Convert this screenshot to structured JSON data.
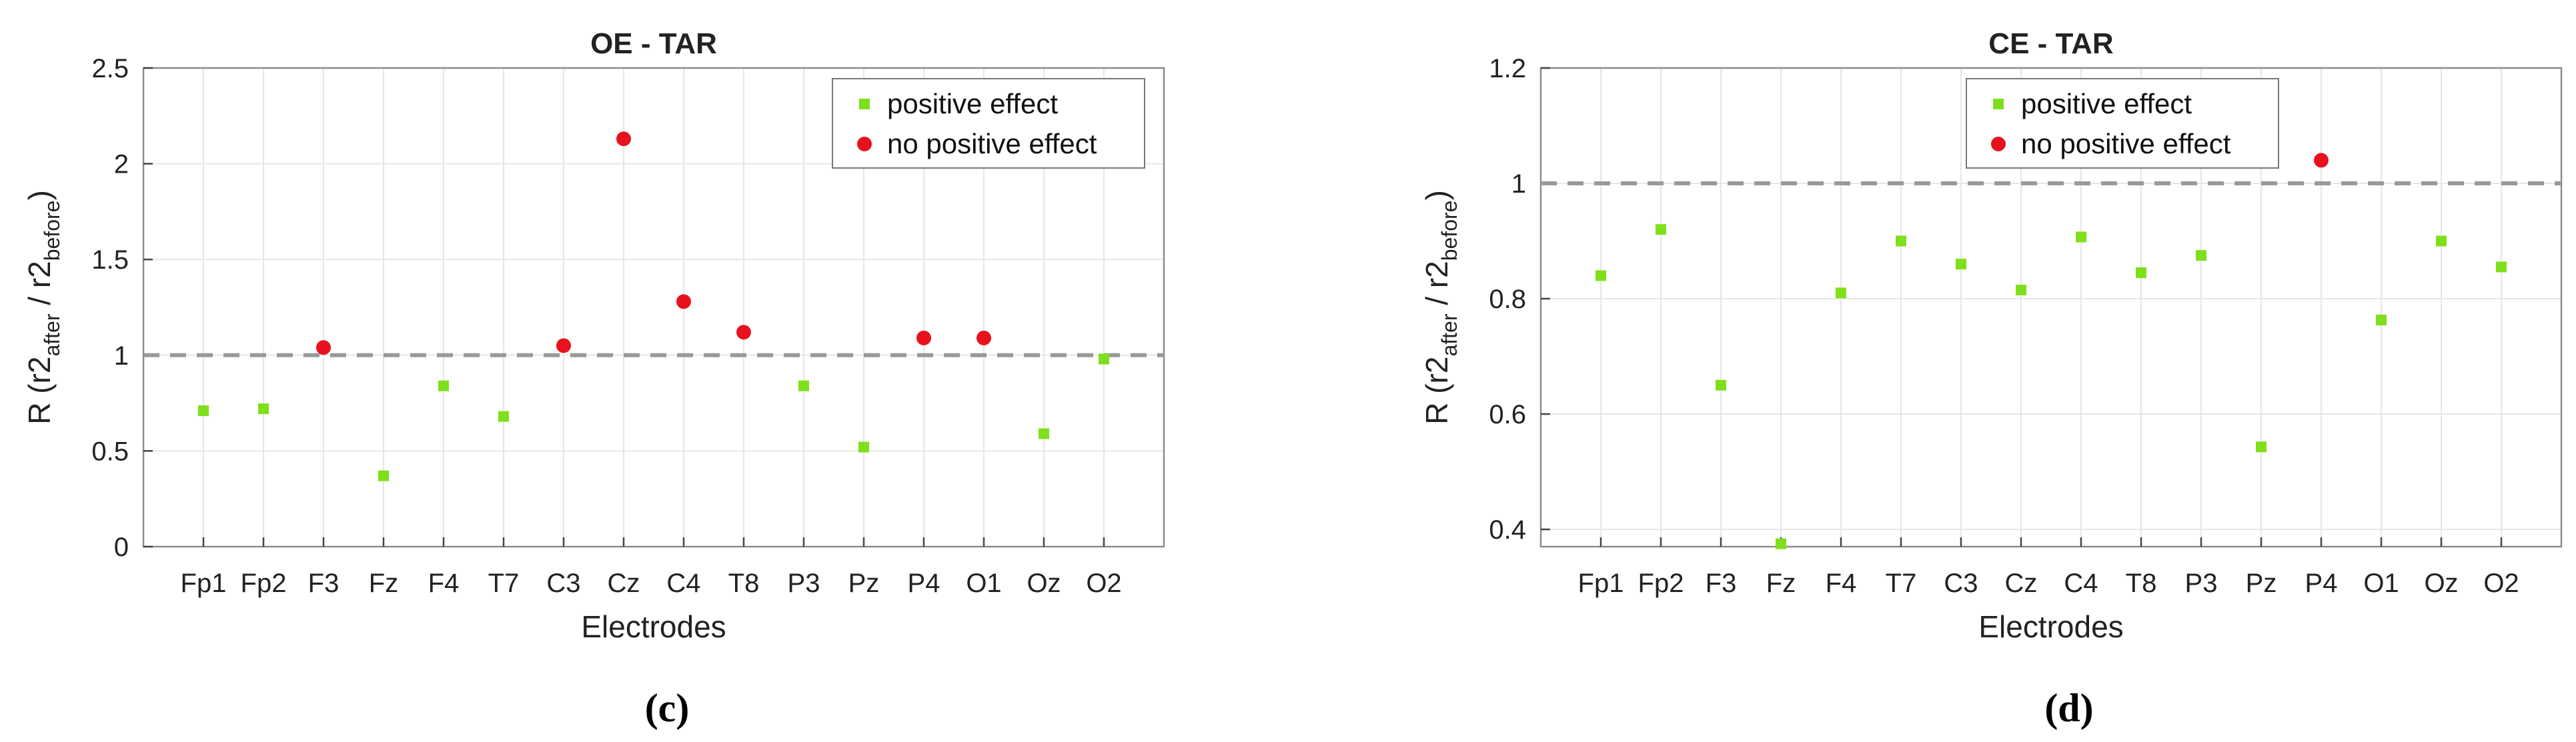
{
  "colors": {
    "positive": "#7ee01a",
    "no_positive": "#e8121e",
    "reference": "#999999",
    "grid": "#e6e6e6",
    "axis": "#8c8c8c"
  },
  "chart_data": [
    {
      "type": "scatter",
      "id": "c",
      "title": "OE - TAR",
      "caption": "(c)",
      "xlabel": "Electrodes",
      "ylabel_parts": {
        "prefix": "R (r2",
        "sub1": "after",
        "mid": " / r2",
        "sub2": "before",
        "suffix": ")"
      },
      "ylim": [
        0,
        2.5
      ],
      "yticks": [
        0,
        0.5,
        1,
        1.5,
        2,
        2.5
      ],
      "ytick_labels": [
        "0",
        "0.5",
        "1",
        "1.5",
        "2",
        "2.5"
      ],
      "reference_line": 1,
      "legend": {
        "position": "top-right",
        "entries": [
          "positive effect",
          "no positive effect"
        ]
      },
      "categories": [
        "Fp1",
        "Fp2",
        "F3",
        "Fz",
        "F4",
        "T7",
        "C3",
        "Cz",
        "C4",
        "T8",
        "P3",
        "Pz",
        "P4",
        "O1",
        "Oz",
        "O2"
      ],
      "series": [
        {
          "name": "positive effect",
          "marker": "square",
          "points": [
            [
              "Fp1",
              0.71
            ],
            [
              "Fp2",
              0.72
            ],
            [
              "Fz",
              0.37
            ],
            [
              "F4",
              0.84
            ],
            [
              "T7",
              0.68
            ],
            [
              "P3",
              0.84
            ],
            [
              "Pz",
              0.52
            ],
            [
              "Oz",
              0.59
            ],
            [
              "O2",
              0.98
            ]
          ]
        },
        {
          "name": "no positive effect",
          "marker": "circle",
          "points": [
            [
              "F3",
              1.04
            ],
            [
              "C3",
              1.05
            ],
            [
              "Cz",
              2.13
            ],
            [
              "C4",
              1.28
            ],
            [
              "T8",
              1.12
            ],
            [
              "P4",
              1.09
            ],
            [
              "O1",
              1.09
            ]
          ]
        }
      ]
    },
    {
      "type": "scatter",
      "id": "d",
      "title": "CE - TAR",
      "caption": "(d)",
      "xlabel": "Electrodes",
      "ylabel_parts": {
        "prefix": "R (r2",
        "sub1": "after",
        "mid": " / r2",
        "sub2": "before",
        "suffix": ")"
      },
      "ylim": [
        0.37,
        1.2
      ],
      "yticks": [
        0.4,
        0.6,
        0.8,
        1,
        1.2
      ],
      "ytick_labels": [
        "0.4",
        "0.6",
        "0.8",
        "1",
        "1.2"
      ],
      "reference_line": 1,
      "legend": {
        "position": "top-right",
        "entries": [
          "positive effect",
          "no positive effect"
        ]
      },
      "categories": [
        "Fp1",
        "Fp2",
        "F3",
        "Fz",
        "F4",
        "T7",
        "C3",
        "Cz",
        "C4",
        "T8",
        "P3",
        "Pz",
        "P4",
        "O1",
        "Oz",
        "O2"
      ],
      "series": [
        {
          "name": "positive effect",
          "marker": "square",
          "points": [
            [
              "Fp1",
              0.84
            ],
            [
              "Fp2",
              0.92
            ],
            [
              "F3",
              0.65
            ],
            [
              "Fz",
              0.375
            ],
            [
              "F4",
              0.81
            ],
            [
              "T7",
              0.9
            ],
            [
              "C3",
              0.86
            ],
            [
              "Cz",
              0.815
            ],
            [
              "C4",
              0.907
            ],
            [
              "T8",
              0.845
            ],
            [
              "P3",
              0.875
            ],
            [
              "Pz",
              0.543
            ],
            [
              "O1",
              0.763
            ],
            [
              "Oz",
              0.9
            ],
            [
              "O2",
              0.855
            ]
          ]
        },
        {
          "name": "no positive effect",
          "marker": "circle",
          "points": [
            [
              "P4",
              1.04
            ]
          ]
        }
      ]
    }
  ]
}
